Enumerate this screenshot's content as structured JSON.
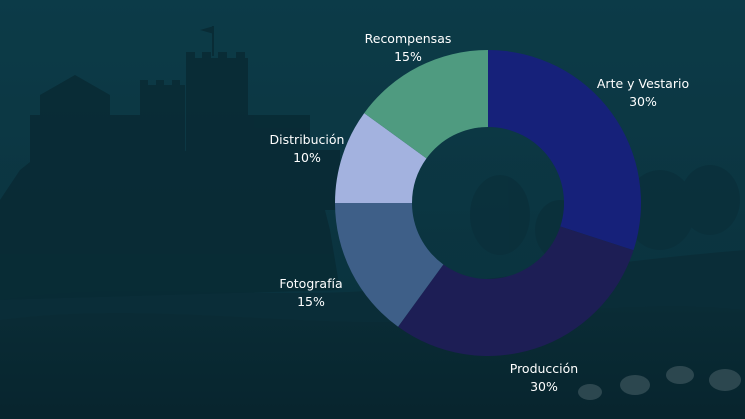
{
  "chart_data": {
    "type": "donut",
    "title": "",
    "slices": [
      {
        "label": "Arte y Vestario",
        "value": 30,
        "display": "30%",
        "color": "#16217a"
      },
      {
        "label": "Producción",
        "value": 30,
        "display": "30%",
        "color": "#1d1e55"
      },
      {
        "label": "Fotografía",
        "value": 15,
        "display": "15%",
        "color": "#3e5f88"
      },
      {
        "label": "Distribución",
        "value": 10,
        "display": "10%",
        "color": "#a3b2df"
      },
      {
        "label": "Recompensas",
        "value": 15,
        "display": "15%",
        "color": "#4f9b80"
      }
    ],
    "start_angle_deg": 0,
    "direction": "clockwise",
    "legend": "none",
    "labels_position": "outside"
  },
  "background": {
    "subject": "castle-silhouette-at-dusk",
    "tint": "#0d3947"
  }
}
